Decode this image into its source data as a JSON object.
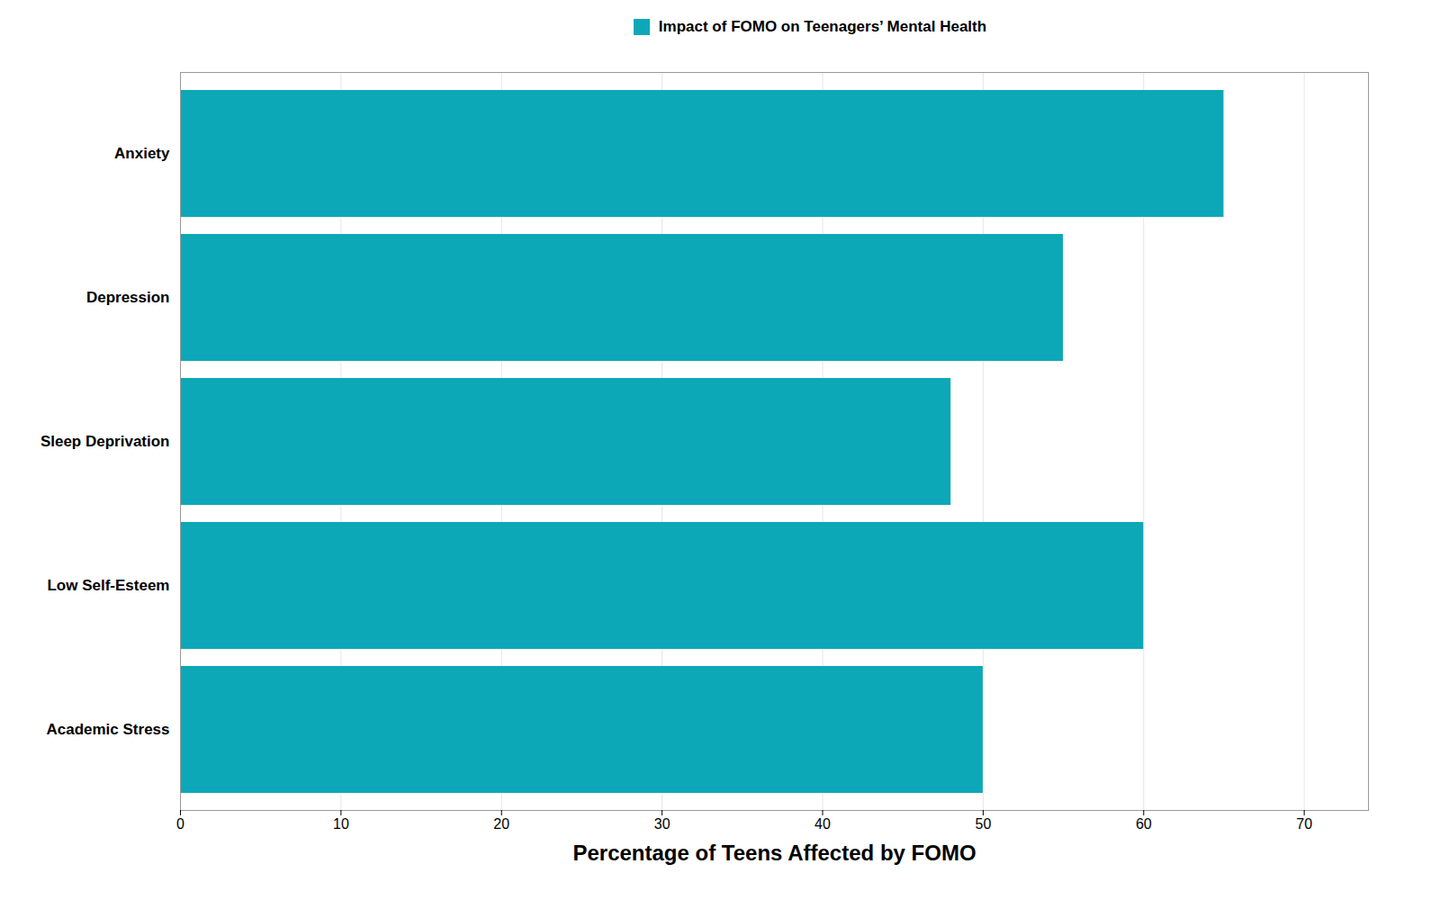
{
  "chart_data": {
    "type": "bar",
    "orientation": "horizontal",
    "categories": [
      "Academic Stress",
      "Low Self-Esteem",
      "Sleep Deprivation",
      "Depression",
      "Anxiety"
    ],
    "series": [
      {
        "name": "Impact of FOMO on Teenagers’ Mental Health",
        "color": "#0DA8B8",
        "values": [
          50,
          60,
          48,
          55,
          65
        ]
      }
    ],
    "xlabel": "Percentage of Teens Affected by FOMO",
    "xlim": [
      0,
      74
    ],
    "xticks": [
      0,
      10,
      20,
      30,
      40,
      50,
      60,
      70
    ],
    "grid": true,
    "legend": "top"
  }
}
